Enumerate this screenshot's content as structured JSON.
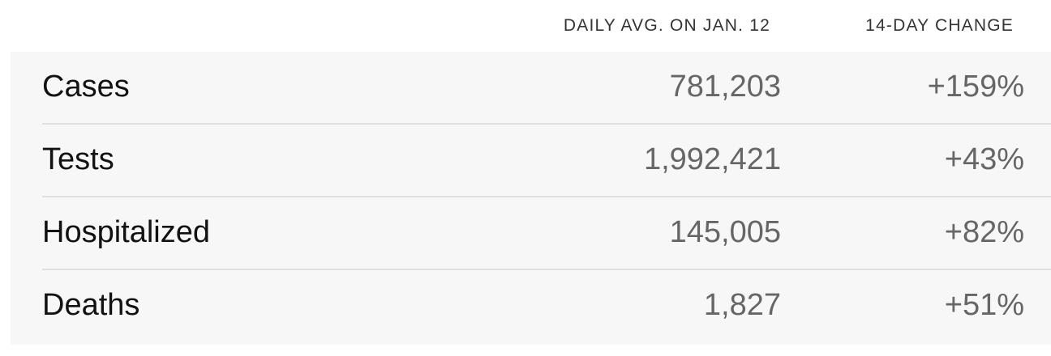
{
  "header": {
    "avg_label": "DAILY AVG. ON JAN. 12",
    "change_label": "14-DAY CHANGE"
  },
  "rows": [
    {
      "label": "Cases",
      "value": "781,203",
      "change": "+159%"
    },
    {
      "label": "Tests",
      "value": "1,992,421",
      "change": "+43%"
    },
    {
      "label": "Hospitalized",
      "value": "145,005",
      "change": "+82%"
    },
    {
      "label": "Deaths",
      "value": "1,827",
      "change": "+51%"
    }
  ],
  "colors": {
    "panel_background": "#f7f7f7",
    "label_text": "#121212",
    "value_text": "#666666",
    "divider": "#e0e0e0"
  }
}
